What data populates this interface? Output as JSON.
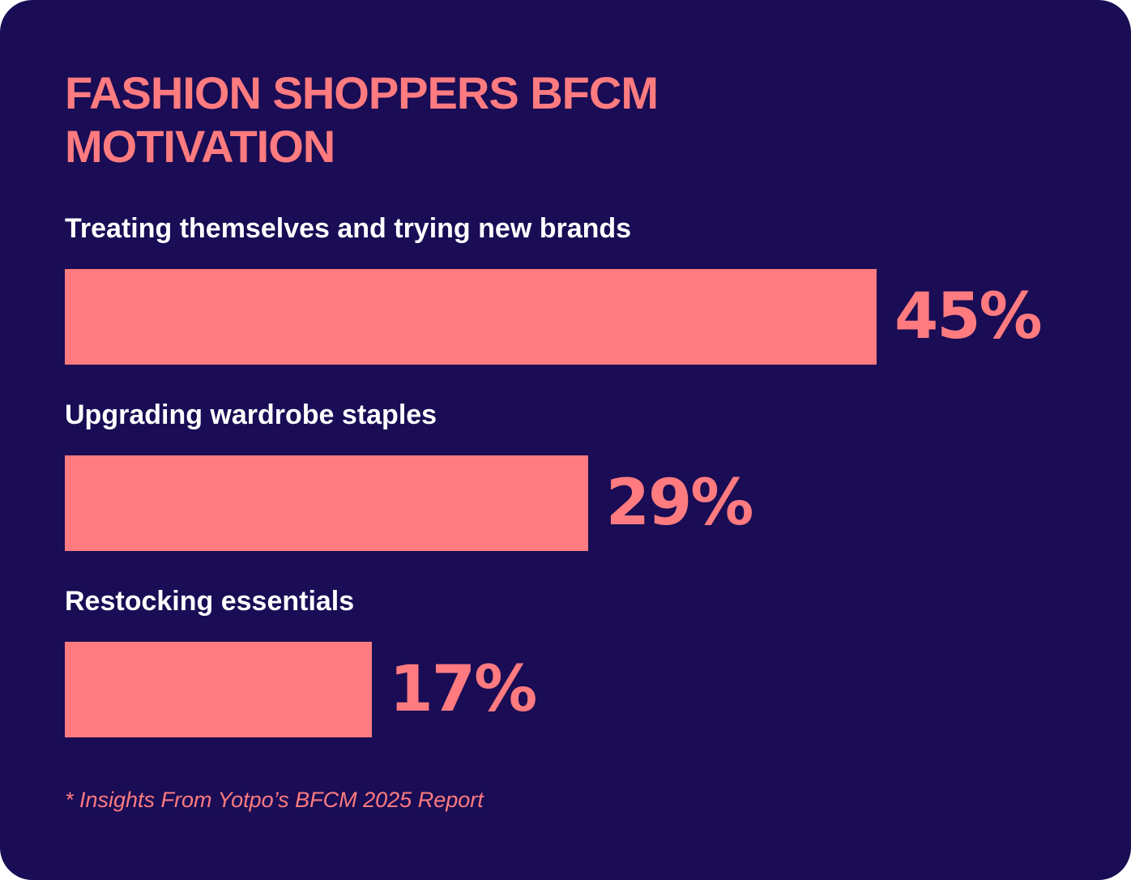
{
  "chart_data": {
    "type": "bar",
    "orientation": "horizontal",
    "title": "FASHION SHOPPERS BFCM MOTIVATION",
    "categories": [
      "Treating themselves and trying new brands",
      "Upgrading wardrobe staples",
      "Restocking essentials"
    ],
    "values": [
      45,
      29,
      17
    ],
    "value_labels": [
      "45%",
      "29%",
      "17%"
    ],
    "color": "#ff7b7f",
    "note": "* Insights From Yotpo’s BFCM 2025 Report"
  }
}
